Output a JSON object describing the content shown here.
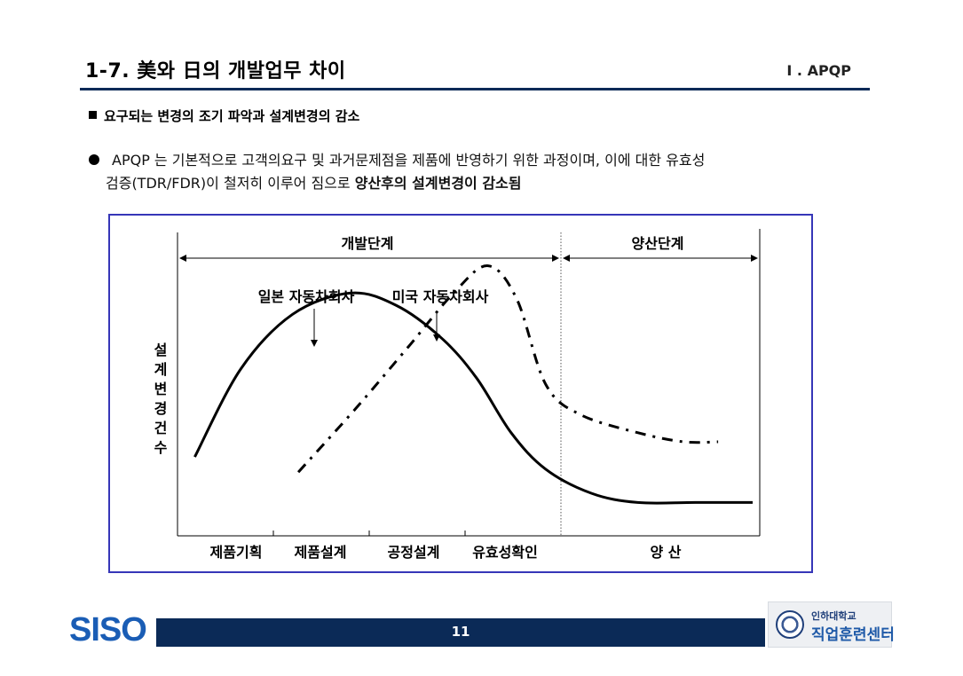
{
  "header": {
    "title": "1-7.  美와 日의 개발업무 차이",
    "section": "I . APQP"
  },
  "bullet": {
    "heading": "요구되는 변경의 조기 파악과 설계변경의 감소",
    "text_line1": "APQP 는 기본적으로 고객의요구 및 과거문제점을 제품에 반영하기 위한 과정이며, 이에 대한 유효성",
    "text_line2_normal": "검증(TDR/FDR)이 철저히 이루어 짐으로 ",
    "text_line2_bold": "양산후의 설계변경이 감소됨"
  },
  "chart_data": {
    "type": "line",
    "ylabel": "설계변경건수",
    "phases": [
      "개발단계",
      "양산단계"
    ],
    "x_categories": [
      "제품기획",
      "제품설계",
      "공정설계",
      "유효성확인",
      "양 산"
    ],
    "x_range": [
      0,
      5
    ],
    "y_range": [
      0,
      100
    ],
    "grid": false,
    "series": [
      {
        "name": "일본 자동차회사",
        "style": "solid",
        "color": "#000000",
        "points": [
          [
            0.15,
            26
          ],
          [
            0.55,
            55
          ],
          [
            1.0,
            73
          ],
          [
            1.5,
            80
          ],
          [
            1.9,
            76
          ],
          [
            2.3,
            65
          ],
          [
            2.6,
            52
          ],
          [
            2.9,
            34
          ],
          [
            3.2,
            22
          ],
          [
            3.6,
            14
          ],
          [
            4.0,
            11
          ],
          [
            4.5,
            11
          ],
          [
            5.0,
            11
          ]
        ]
      },
      {
        "name": "미국 자동차회사",
        "style": "dash-dot",
        "color": "#000000",
        "points": [
          [
            1.05,
            21
          ],
          [
            1.55,
            42
          ],
          [
            2.0,
            62
          ],
          [
            2.4,
            80
          ],
          [
            2.7,
            89
          ],
          [
            2.95,
            78
          ],
          [
            3.2,
            50
          ],
          [
            3.5,
            40
          ],
          [
            4.0,
            34
          ],
          [
            4.4,
            31
          ],
          [
            4.7,
            31
          ]
        ]
      }
    ]
  },
  "footer": {
    "page_number": "11",
    "logo_left": "SISO",
    "logo_right_line1": "인하대학교",
    "logo_right_line2": "직업훈련센터"
  },
  "colors": {
    "accent_navy": "#0b2a57",
    "chart_border": "#3636b8",
    "siso_blue": "#1a5db5"
  }
}
